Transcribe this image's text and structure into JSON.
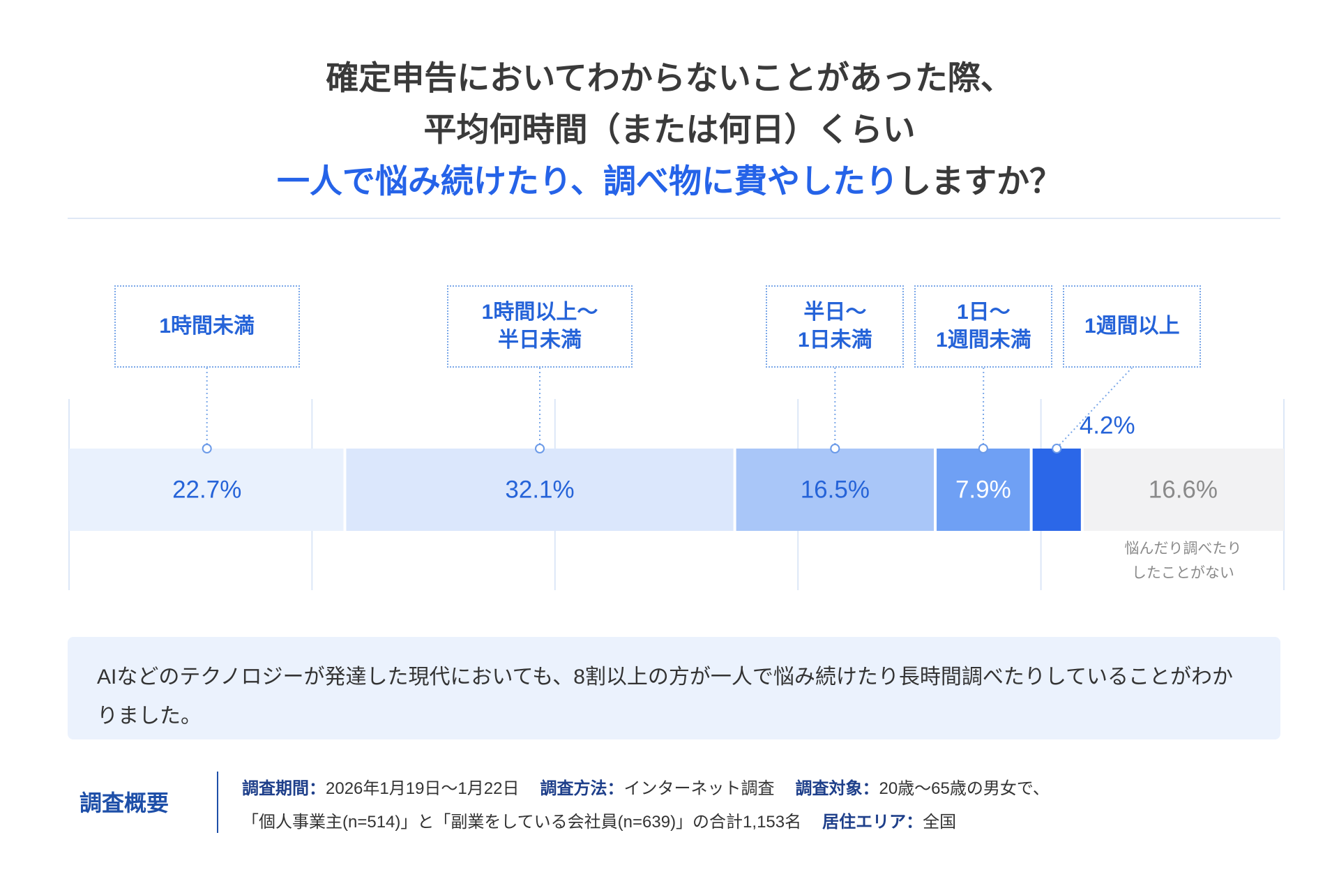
{
  "chart_data": {
    "type": "stacked-bar",
    "title": {
      "line1": "確定申告においてわからないことがあった際、",
      "line2": "平均何時間（または何日）くらい",
      "line3_highlight": "一人で悩み続けたり、調べ物に費やしたり",
      "line3_rest": "しますか？"
    },
    "categories": [
      "1時間未満",
      "1時間以上〜\n半日未満",
      "半日〜\n1日未満",
      "1日〜\n1週間未満",
      "1週間以上",
      "悩んだり調べたり\nしたことがない"
    ],
    "values": [
      22.7,
      32.1,
      16.5,
      7.9,
      4.2,
      16.6
    ],
    "value_labels": [
      "22.7%",
      "32.1%",
      "16.5%",
      "7.9%",
      "4.2%",
      "16.6%"
    ],
    "colors": [
      "#e9f1fd",
      "#dbe7fc",
      "#a9c6f8",
      "#6fa0f4",
      "#2b67e8",
      "#f2f2f3"
    ],
    "label_colors": [
      "#2563d8",
      "#2563d8",
      "#2563d8",
      "#ffffff",
      "#2563d8",
      "#8a8a8a"
    ],
    "xlim": [
      0,
      100
    ],
    "xticks": [
      0,
      20,
      40,
      60,
      80,
      100
    ],
    "grid": true,
    "summary": "AIなどのテクノロジーが発達した現代においても、8割以上の方が一人で悩み続けたり長時間調べたりしていることがわかりました。",
    "survey": {
      "heading": "調査概要",
      "lines": [
        [
          {
            "label": "調査期間：",
            "text": "2026年1月19日〜1月22日"
          },
          {
            "label": "調査方法：",
            "text": "インターネット調査"
          },
          {
            "label": "調査対象：",
            "text": "20歳〜65歳の男女で、"
          }
        ],
        [
          {
            "text": "「個人事業主(n=514)」と「副業をしている会社員(n=639)」の合計1,153名"
          },
          {
            "label": "居住エリア：",
            "text": "全国"
          }
        ]
      ]
    }
  }
}
